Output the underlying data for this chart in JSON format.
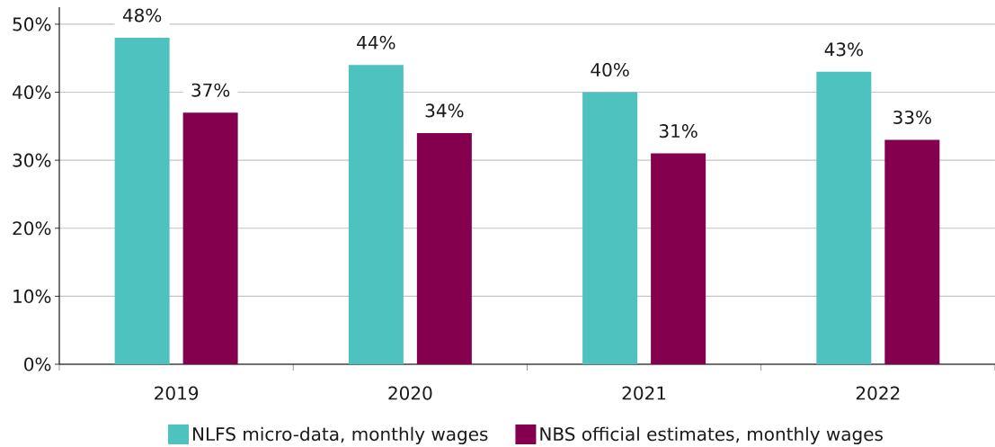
{
  "chart_data": {
    "type": "bar",
    "categories": [
      "2019",
      "2020",
      "2021",
      "2022"
    ],
    "series": [
      {
        "name": "NLFS micro-data, monthly wages",
        "color": "#4ec2be",
        "values": [
          48,
          44,
          40,
          43
        ],
        "value_labels": [
          "48%",
          "44%",
          "40%",
          "43%"
        ]
      },
      {
        "name": "NBS official estimates, monthly wages",
        "color": "#84004f",
        "values": [
          37,
          34,
          31,
          33
        ],
        "value_labels": [
          "37%",
          "34%",
          "31%",
          "33%"
        ]
      }
    ],
    "ylim": [
      0,
      52.5
    ],
    "yticks": [
      {
        "value": 0,
        "label": "0%"
      },
      {
        "value": 10,
        "label": "10%"
      },
      {
        "value": 20,
        "label": "20%"
      },
      {
        "value": 30,
        "label": "30%"
      },
      {
        "value": 40,
        "label": "40%"
      },
      {
        "value": 50,
        "label": "50%"
      }
    ],
    "grid": "y",
    "legend": "bottom"
  }
}
